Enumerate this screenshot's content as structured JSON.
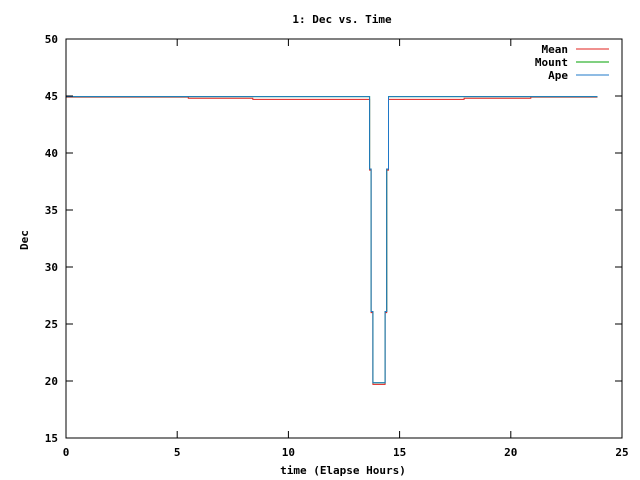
{
  "chart_data": {
    "type": "line",
    "title": "1: Dec vs. Time",
    "xlabel": "time (Elapse Hours)",
    "ylabel": "Dec",
    "xlim": [
      0,
      25
    ],
    "ylim": [
      15,
      50
    ],
    "xticks": [
      0,
      5,
      10,
      15,
      20,
      25
    ],
    "yticks": [
      15,
      20,
      25,
      30,
      35,
      40,
      45,
      50
    ],
    "grid": false,
    "legend_position": "top-right",
    "series": [
      {
        "name": "Mean",
        "color": "#e0201c",
        "points": [
          [
            0,
            44.9
          ],
          [
            5.5,
            44.9
          ],
          [
            5.5,
            44.8
          ],
          [
            8.4,
            44.8
          ],
          [
            8.4,
            44.7
          ],
          [
            13.65,
            44.7
          ],
          [
            13.65,
            38.5
          ],
          [
            13.72,
            38.5
          ],
          [
            13.72,
            26
          ],
          [
            13.8,
            26
          ],
          [
            13.8,
            19.7
          ],
          [
            14.35,
            19.7
          ],
          [
            14.35,
            26
          ],
          [
            14.42,
            26
          ],
          [
            14.42,
            38.5
          ],
          [
            14.5,
            38.5
          ],
          [
            14.5,
            44.7
          ],
          [
            17.9,
            44.7
          ],
          [
            17.9,
            44.8
          ],
          [
            20.9,
            44.8
          ],
          [
            20.9,
            44.9
          ],
          [
            23.9,
            44.9
          ]
        ]
      },
      {
        "name": "Mount",
        "color": "#00a000",
        "points": [
          [
            0,
            44.95
          ],
          [
            13.65,
            44.95
          ],
          [
            13.65,
            38.6
          ],
          [
            13.72,
            38.6
          ],
          [
            13.72,
            26.1
          ],
          [
            13.8,
            26.1
          ],
          [
            13.8,
            19.85
          ],
          [
            14.35,
            19.85
          ],
          [
            14.35,
            26.1
          ],
          [
            14.42,
            26.1
          ],
          [
            14.42,
            38.6
          ],
          [
            14.5,
            38.6
          ],
          [
            14.5,
            44.95
          ],
          [
            23.9,
            44.95
          ]
        ]
      },
      {
        "name": "Ape",
        "color": "#1f78c8",
        "points": [
          [
            0,
            44.95
          ],
          [
            13.65,
            44.95
          ],
          [
            13.65,
            38.6
          ],
          [
            13.72,
            38.6
          ],
          [
            13.72,
            26.1
          ],
          [
            13.8,
            26.1
          ],
          [
            13.8,
            19.85
          ],
          [
            14.35,
            19.85
          ],
          [
            14.35,
            26.1
          ],
          [
            14.42,
            26.1
          ],
          [
            14.42,
            38.6
          ],
          [
            14.5,
            38.6
          ],
          [
            14.5,
            44.95
          ],
          [
            23.9,
            44.95
          ]
        ]
      }
    ]
  }
}
